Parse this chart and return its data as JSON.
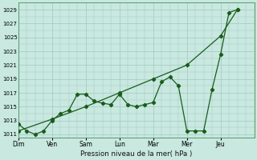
{
  "title": "",
  "xlabel": "Pression niveau de la mer( hPa )",
  "ylabel": "",
  "background_color": "#c8e8e0",
  "grid_color": "#a0c8c0",
  "line_color": "#1a5c1a",
  "ylim": [
    1010.5,
    1030.0
  ],
  "yticks": [
    1011,
    1013,
    1015,
    1017,
    1019,
    1021,
    1023,
    1025,
    1027,
    1029
  ],
  "x_day_labels": [
    "Dim",
    "Ven",
    "Sam",
    "Lun",
    "Mar",
    "Mer",
    "Jeu"
  ],
  "x_day_positions": [
    0,
    28,
    56,
    84,
    112,
    140,
    168
  ],
  "xlim": [
    0,
    196
  ],
  "series1_x": [
    0,
    7,
    14,
    21,
    28,
    35,
    42,
    49,
    56,
    63,
    70,
    77,
    84,
    91,
    98,
    105,
    112,
    119,
    126,
    133,
    140,
    147,
    154,
    161,
    168,
    175,
    182
  ],
  "series1_y": [
    1012.5,
    1011.5,
    1011.0,
    1011.5,
    1013.0,
    1014.0,
    1014.5,
    1016.8,
    1016.8,
    1015.8,
    1015.5,
    1015.3,
    1016.8,
    1015.3,
    1015.0,
    1015.3,
    1015.6,
    1018.6,
    1019.3,
    1018.0,
    1011.5,
    1011.5,
    1011.5,
    1017.5,
    1022.5,
    1028.6,
    1029.0
  ],
  "series2_x": [
    0,
    28,
    56,
    84,
    112,
    140,
    168,
    182
  ],
  "series2_y": [
    1011.5,
    1013.2,
    1015.0,
    1017.0,
    1019.0,
    1021.0,
    1025.2,
    1029.0
  ]
}
